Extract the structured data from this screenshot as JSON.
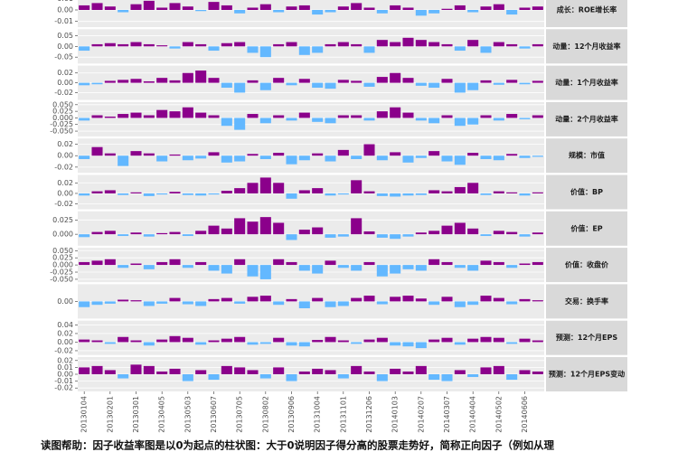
{
  "chart_data": [
    {
      "type": "bar",
      "title": "成长：ROE增长率",
      "ylim": [
        -0.015,
        0.015
      ],
      "yticks": [
        -0.01,
        {
          "value": 0,
          "label": "0.00"
        },
        0.01
      ],
      "color_positive": "#8b008b",
      "color_negative": "#63b8ff",
      "values": [
        0.004,
        0.006,
        0.003,
        -0.002,
        0.005,
        0.008,
        0.002,
        0.006,
        0.003,
        -0.001,
        0.007,
        0.004,
        -0.003,
        0.002,
        0.005,
        -0.002,
        0.003,
        0.004,
        -0.004,
        -0.002,
        0.003,
        0.006,
        0.002,
        -0.003,
        0.004,
        0.002,
        -0.005,
        -0.003,
        0.001,
        0.004,
        -0.002,
        0.003,
        0.005,
        -0.004,
        0.002,
        0.003
      ]
    },
    {
      "type": "bar",
      "title": "动量：12个月收益率",
      "ylim": [
        -0.08,
        0.08
      ],
      "yticks": [
        -0.05,
        {
          "value": 0,
          "label": "0.00"
        },
        0.05
      ],
      "color_positive": "#8b008b",
      "color_negative": "#63b8ff",
      "values": [
        -0.02,
        0.01,
        0.015,
        0.01,
        0.02,
        0.01,
        0.005,
        -0.01,
        0.02,
        0.01,
        -0.02,
        0.015,
        0.02,
        -0.03,
        -0.05,
        0.01,
        0.02,
        -0.04,
        -0.03,
        0.01,
        0.02,
        0.01,
        -0.03,
        0.03,
        0.02,
        0.04,
        0.03,
        0.02,
        0.01,
        -0.02,
        0.03,
        -0.03,
        0.02,
        0.01,
        -0.01,
        0.01
      ]
    },
    {
      "type": "bar",
      "title": "动量：1个月收益率",
      "ylim": [
        -0.035,
        0.035
      ],
      "yticks": [
        -0.02,
        {
          "value": 0,
          "label": "0.00"
        },
        0.02
      ],
      "color_positive": "#8b008b",
      "color_negative": "#63b8ff",
      "values": [
        -0.005,
        -0.003,
        0.004,
        0.006,
        0.008,
        0.003,
        0.01,
        0.005,
        0.02,
        0.025,
        0.01,
        -0.01,
        -0.02,
        0.005,
        -0.015,
        0.01,
        -0.005,
        0.008,
        -0.01,
        -0.012,
        0.006,
        0.004,
        -0.008,
        0.012,
        0.02,
        0.01,
        -0.006,
        -0.01,
        0.008,
        -0.02,
        -0.015,
        0.005,
        -0.004,
        0.006,
        -0.003,
        0.004
      ]
    },
    {
      "type": "bar",
      "title": "动量：2个月收益率",
      "ylim": [
        -0.07,
        0.06
      ],
      "yticks": [
        {
          "value": -0.05,
          "label": "-0.050"
        },
        {
          "value": -0.025,
          "label": "-0.025"
        },
        {
          "value": 0,
          "label": "0.000"
        },
        {
          "value": 0.025,
          "label": "0.025"
        },
        {
          "value": 0.05,
          "label": "0.050"
        }
      ],
      "color_positive": "#8b008b",
      "color_negative": "#63b8ff",
      "values": [
        -0.01,
        0.01,
        0.005,
        0.015,
        0.02,
        0.01,
        0.03,
        0.025,
        0.04,
        0.02,
        0.01,
        -0.03,
        -0.045,
        0.015,
        -0.02,
        0.01,
        -0.01,
        0.02,
        -0.015,
        -0.02,
        0.01,
        0.01,
        -0.01,
        0.025,
        0.04,
        0.02,
        -0.01,
        -0.02,
        0.01,
        -0.03,
        -0.025,
        0.01,
        -0.01,
        0.015,
        -0.005,
        0.01
      ]
    },
    {
      "type": "bar",
      "title": "规模：市值",
      "ylim": [
        -0.03,
        0.03
      ],
      "yticks": [
        -0.02,
        {
          "value": 0,
          "label": "0.00"
        },
        0.02
      ],
      "color_positive": "#8b008b",
      "color_negative": "#63b8ff",
      "values": [
        -0.006,
        0.015,
        0.004,
        -0.018,
        0.008,
        0.004,
        -0.01,
        0.002,
        -0.008,
        -0.005,
        0.006,
        -0.012,
        -0.01,
        0.003,
        -0.006,
        0.005,
        -0.015,
        -0.008,
        0.004,
        -0.01,
        0.01,
        -0.006,
        0.02,
        -0.008,
        0.006,
        -0.012,
        -0.004,
        0.008,
        -0.01,
        -0.016,
        0.005,
        -0.006,
        -0.008,
        0.003,
        -0.004,
        -0.002
      ]
    },
    {
      "type": "bar",
      "title": "价值：BP",
      "ylim": [
        -0.03,
        0.035
      ],
      "yticks": [
        -0.02,
        {
          "value": 0,
          "label": "0.00"
        },
        0.02
      ],
      "color_positive": "#8b008b",
      "color_negative": "#63b8ff",
      "values": [
        -0.004,
        0.004,
        0.006,
        -0.003,
        0.002,
        -0.005,
        -0.002,
        0.003,
        -0.003,
        -0.004,
        -0.002,
        0.005,
        0.01,
        0.02,
        0.03,
        0.02,
        -0.01,
        0.006,
        0.01,
        -0.004,
        -0.002,
        0.025,
        0.004,
        -0.005,
        -0.006,
        -0.004,
        -0.003,
        0.006,
        0.004,
        0.012,
        0.02,
        -0.003,
        0.004,
        0.002,
        -0.004,
        0.002
      ]
    },
    {
      "type": "bar",
      "title": "价值：EP",
      "ylim": [
        -0.02,
        0.04
      ],
      "yticks": [
        {
          "value": 0,
          "label": "0.000"
        },
        0.025
      ],
      "color_positive": "#8b008b",
      "color_negative": "#63b8ff",
      "values": [
        -0.005,
        0.004,
        0.006,
        -0.003,
        0.003,
        -0.004,
        0.002,
        0.004,
        -0.003,
        0.006,
        0.015,
        0.01,
        0.028,
        0.022,
        0.03,
        0.02,
        -0.01,
        0.008,
        0.012,
        -0.006,
        -0.004,
        0.028,
        0.005,
        -0.006,
        -0.008,
        -0.004,
        0.003,
        0.006,
        0.015,
        0.02,
        0.01,
        -0.003,
        0.006,
        0.004,
        -0.004,
        0.003
      ]
    },
    {
      "type": "bar",
      "title": "价值：收盘价",
      "ylim": [
        -0.06,
        0.06
      ],
      "yticks": [
        {
          "value": -0.05,
          "label": "-0.050"
        },
        {
          "value": -0.025,
          "label": "-0.025"
        },
        {
          "value": 0,
          "label": "0.000"
        },
        {
          "value": 0.025,
          "label": "0.025"
        },
        {
          "value": 0.05,
          "label": "0.050"
        }
      ],
      "color_positive": "#8b008b",
      "color_negative": "#63b8ff",
      "values": [
        0.01,
        0.015,
        0.02,
        -0.01,
        0.005,
        -0.015,
        0.01,
        0.02,
        -0.01,
        0.01,
        -0.02,
        -0.03,
        0.02,
        -0.04,
        -0.05,
        0.02,
        0.01,
        -0.02,
        -0.03,
        0.015,
        -0.01,
        -0.02,
        0.01,
        -0.04,
        -0.03,
        -0.015,
        -0.02,
        0.02,
        0.01,
        -0.01,
        -0.02,
        0.015,
        0.01,
        -0.01,
        0.005,
        0.01
      ]
    },
    {
      "type": "bar",
      "title": "交易：换手率",
      "ylim": [
        -0.03,
        0.03
      ],
      "yticks": [
        {
          "value": 0,
          "label": "0.00"
        }
      ],
      "color_positive": "#8b008b",
      "color_negative": "#63b8ff",
      "values": [
        -0.01,
        -0.006,
        -0.004,
        0.003,
        0.002,
        -0.008,
        -0.004,
        0.006,
        -0.005,
        -0.008,
        0.004,
        0.006,
        -0.004,
        0.008,
        0.01,
        -0.006,
        0.004,
        -0.012,
        0.006,
        -0.01,
        -0.008,
        0.006,
        0.01,
        -0.005,
        0.008,
        0.01,
        0.005,
        -0.006,
        0.008,
        -0.01,
        -0.006,
        0.01,
        0.006,
        -0.005,
        0.004,
        0.002
      ]
    },
    {
      "type": "bar",
      "title": "预测：12个月EPS",
      "ylim": [
        -0.03,
        0.05
      ],
      "yticks": [
        -0.02,
        {
          "value": 0,
          "label": "0.00"
        },
        0.02,
        0.04
      ],
      "color_positive": "#8b008b",
      "color_negative": "#63b8ff",
      "values": [
        0.006,
        0.004,
        -0.004,
        0.012,
        0.004,
        -0.008,
        0.006,
        0.014,
        0.01,
        -0.006,
        0.004,
        0.008,
        0.012,
        -0.006,
        -0.004,
        0.01,
        -0.008,
        -0.01,
        0.005,
        0.012,
        0.004,
        -0.004,
        0.006,
        0.01,
        -0.008,
        -0.01,
        -0.014,
        0.006,
        0.01,
        -0.006,
        0.008,
        0.012,
        0.01,
        -0.004,
        0.008,
        0.004
      ]
    },
    {
      "type": "bar",
      "title": "预测：12个月EPS变动",
      "ylim": [
        -0.025,
        0.025
      ],
      "yticks": [
        -0.02,
        -0.01,
        {
          "value": 0,
          "label": "0.00"
        },
        0.01,
        0.02
      ],
      "color_positive": "#8b008b",
      "color_negative": "#63b8ff",
      "categories": [
        "20130104",
        null,
        "20130201",
        null,
        "20130301",
        null,
        "20130405",
        null,
        "20130503",
        null,
        "20130607",
        null,
        "20130705",
        null,
        "20130802",
        null,
        "20130906",
        null,
        "20131004",
        null,
        "20131101",
        null,
        "20131206",
        null,
        "20140103",
        null,
        "20140207",
        null,
        "20140307",
        null,
        "20140404",
        null,
        "20140502",
        null,
        "20140606",
        null
      ],
      "values": [
        0.01,
        0.012,
        0.006,
        -0.006,
        0.014,
        0.012,
        0.004,
        0.008,
        -0.01,
        0.006,
        -0.008,
        0.012,
        0.01,
        0.006,
        -0.006,
        0.01,
        -0.01,
        0.004,
        0.008,
        0.006,
        -0.006,
        0.012,
        0.004,
        -0.01,
        0.008,
        0.004,
        0.012,
        -0.008,
        -0.01,
        0.006,
        -0.004,
        0.01,
        0.012,
        -0.008,
        0.006,
        0.004
      ]
    }
  ],
  "caption": "读图帮助：因子收益率图是以0为起点的柱状图：大于0说明因子得分高的股票走势好，简称正向因子（例如从理"
}
